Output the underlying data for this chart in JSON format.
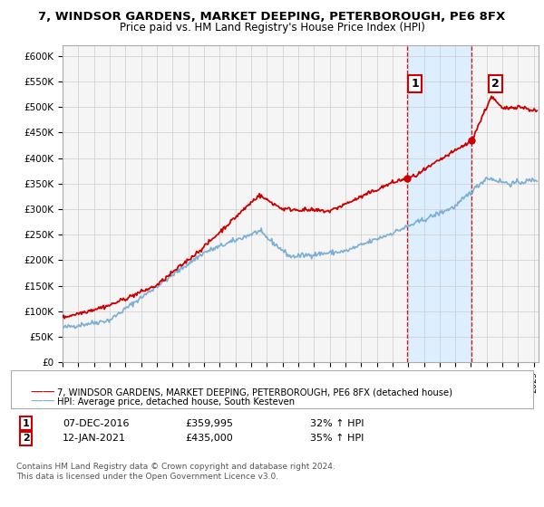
{
  "title1": "7, WINDSOR GARDENS, MARKET DEEPING, PETERBOROUGH, PE6 8FX",
  "title2": "Price paid vs. HM Land Registry's House Price Index (HPI)",
  "legend_line1": "7, WINDSOR GARDENS, MARKET DEEPING, PETERBOROUGH, PE6 8FX (detached house)",
  "legend_line2": "HPI: Average price, detached house, South Kesteven",
  "annotation1_label": "1",
  "annotation1_date": "07-DEC-2016",
  "annotation1_price": "£359,995",
  "annotation1_hpi": "32% ↑ HPI",
  "annotation2_label": "2",
  "annotation2_date": "12-JAN-2021",
  "annotation2_price": "£435,000",
  "annotation2_hpi": "35% ↑ HPI",
  "footnote1": "Contains HM Land Registry data © Crown copyright and database right 2024.",
  "footnote2": "This data is licensed under the Open Government Licence v3.0.",
  "red_color": "#cc0000",
  "blue_color": "#7bafd4",
  "shade_color": "#ddeeff",
  "grid_color": "#cccccc",
  "bg_color": "#f5f5f5",
  "ylim": [
    0,
    620000
  ],
  "yticks": [
    0,
    50000,
    100000,
    150000,
    200000,
    250000,
    300000,
    350000,
    400000,
    450000,
    500000,
    550000,
    600000
  ],
  "marker1_x": 2016.92,
  "marker1_y": 359995,
  "marker2_x": 2021.04,
  "marker2_y": 435000,
  "xmin": 1995,
  "xmax": 2025.3
}
